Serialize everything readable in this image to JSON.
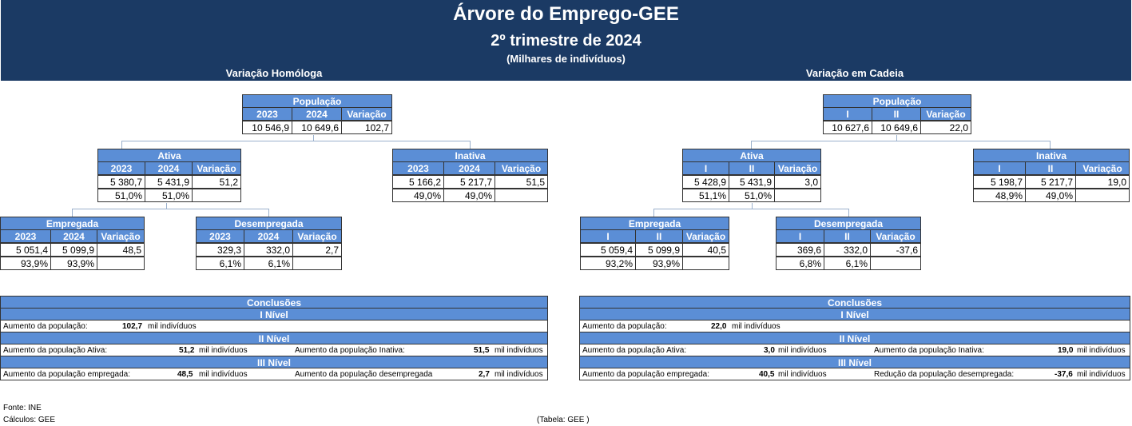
{
  "title": "Árvore do Emprego-GEE",
  "subtitle": "2º trimestre de 2024",
  "units": "(Milhares de indivíduos)",
  "left_section": "Variação Homóloga",
  "right_section": "Variação em Cadeia",
  "left": {
    "populacao": {
      "name": "População",
      "c1": "2023",
      "c2": "2024",
      "c3": "Variação",
      "v1": "10 546,9",
      "v2": "10 649,6",
      "v3": "102,7"
    },
    "ativa": {
      "name": "Ativa",
      "c1": "2023",
      "c2": "2024",
      "c3": "Variação",
      "v1": "5 380,7",
      "v2": "5 431,9",
      "v3": "51,2",
      "p1": "51,0%",
      "p2": "51,0%"
    },
    "inativa": {
      "name": "Inativa",
      "c1": "2023",
      "c2": "2024",
      "c3": "Variação",
      "v1": "5 166,2",
      "v2": "5 217,7",
      "v3": "51,5",
      "p1": "49,0%",
      "p2": "49,0%"
    },
    "empregada": {
      "name": "Empregada",
      "c1": "2023",
      "c2": "2024",
      "c3": "Variação",
      "v1": "5 051,4",
      "v2": "5 099,9",
      "v3": "48,5",
      "p1": "93,9%",
      "p2": "93,9%"
    },
    "desempregada": {
      "name": "Desempregada",
      "c1": "2023",
      "c2": "2024",
      "c3": "Variação",
      "v1": "329,3",
      "v2": "332,0",
      "v3": "2,7",
      "p1": "6,1%",
      "p2": "6,1%"
    }
  },
  "right": {
    "populacao": {
      "name": "População",
      "c1": "I",
      "c2": "II",
      "c3": "Variação",
      "v1": "10 627,6",
      "v2": "10 649,6",
      "v3": "22,0"
    },
    "ativa": {
      "name": "Ativa",
      "c1": "I",
      "c2": "II",
      "c3": "Variação",
      "v1": "5 428,9",
      "v2": "5 431,9",
      "v3": "3,0",
      "p1": "51,1%",
      "p2": "51,0%"
    },
    "inativa": {
      "name": "Inativa",
      "c1": "I",
      "c2": "II",
      "c3": "Variação",
      "v1": "5 198,7",
      "v2": "5 217,7",
      "v3": "19,0",
      "p1": "48,9%",
      "p2": "49,0%"
    },
    "empregada": {
      "name": "Empregada",
      "c1": "I",
      "c2": "II",
      "c3": "Variação",
      "v1": "5 059,4",
      "v2": "5 099,9",
      "v3": "40,5",
      "p1": "93,2%",
      "p2": "93,9%"
    },
    "desempregada": {
      "name": "Desempregada",
      "c1": "I",
      "c2": "II",
      "c3": "Variação",
      "v1": "369,6",
      "v2": "332,0",
      "v3": "-37,6",
      "p1": "6,8%",
      "p2": "6,1%"
    }
  },
  "conclusions_left": {
    "title": "Conclusões",
    "level1": "I Nível",
    "level2": "II Nível",
    "level3": "III Nível",
    "l1_label": "Aumento da população:",
    "l1_value": "102,7",
    "l1_unit": "mil indivíduos",
    "l2a_label": "Aumento da população Ativa:",
    "l2a_value": "51,2",
    "l2a_unit": "mil indivíduos",
    "l2b_label": "Aumento da população Inativa:",
    "l2b_value": "51,5",
    "l2b_unit": "mil indivíduos",
    "l3a_label": "Aumento da população empregada:",
    "l3a_value": "48,5",
    "l3a_unit": "mil indivíduos",
    "l3b_label": "Aumento da população desempregada",
    "l3b_value": "2,7",
    "l3b_unit": "mil indivíduos"
  },
  "conclusions_right": {
    "title": "Conclusões",
    "level1": "I Nível",
    "level2": "II Nível",
    "level3": "III Nível",
    "l1_label": "Aumento da população:",
    "l1_value": "22,0",
    "l1_unit": "mil indivíduos",
    "l2a_label": "Aumento da população Ativa:",
    "l2a_value": "3,0",
    "l2a_unit": "mil indivíduos",
    "l2b_label": "Aumento da população Inativa:",
    "l2b_value": "19,0",
    "l2b_unit": "mil indivíduos",
    "l3a_label": "Aumento da população empregada:",
    "l3a_value": "40,5",
    "l3a_unit": "mil indivíduos",
    "l3b_label": "Redução da população desempregada:",
    "l3b_value": "-37,6",
    "l3b_unit": "mil indivíduos"
  },
  "footer": {
    "source": "Fonte: INE",
    "calc": "Cálculos: GEE",
    "table": "(Tabela: GEE )"
  }
}
